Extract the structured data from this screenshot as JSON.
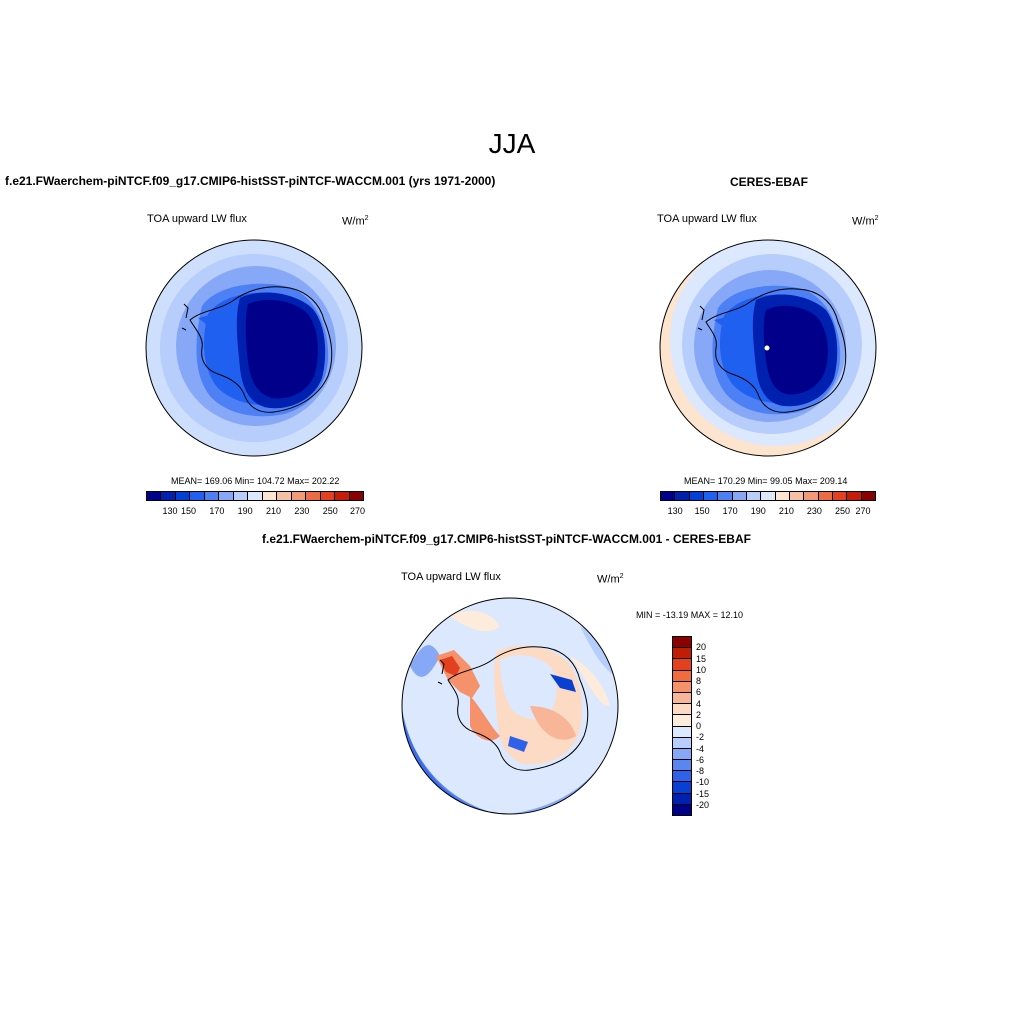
{
  "season_title": "JJA",
  "colors": {
    "abs_palette": [
      "#00008b",
      "#0020b0",
      "#0040d8",
      "#2060f0",
      "#4d7ff5",
      "#87a8f7",
      "#b7cdfb",
      "#dce8fd",
      "#fde4cf",
      "#f8c0a2",
      "#f29a77",
      "#ec6c45",
      "#e2401e",
      "#c41e0a",
      "#8b0000"
    ],
    "diff_palette": [
      "#8b0000",
      "#bf1e05",
      "#e2401e",
      "#f26b3e",
      "#f5916b",
      "#f8b597",
      "#fddac4",
      "#fdebdb",
      "#dce8fd",
      "#b7cdfb",
      "#87a8f7",
      "#5b86f0",
      "#2f62ea",
      "#0a3fd3",
      "#0020b0",
      "#00008b"
    ],
    "coastline": "#000000"
  },
  "model_panel": {
    "title": "f.e21.FWaerchem-piNTCF.f09_g17.CMIP6-histSST-piNTCF-WACCM.001 (yrs 1971-2000)",
    "variable": "TOA upward LW flux",
    "units": "W/m",
    "units_exp": "2",
    "stats": "MEAN= 169.06  Min= 104.72  Max= 202.22",
    "colorbar_labels": [
      "130",
      "150",
      "170",
      "190",
      "210",
      "230",
      "250",
      "270"
    ]
  },
  "obs_panel": {
    "title": "CERES-EBAF",
    "variable": "TOA upward LW flux",
    "units": "W/m",
    "units_exp": "2",
    "stats": "MEAN= 170.29  Min=  99.05  Max= 209.14",
    "colorbar_labels": [
      "130",
      "150",
      "170",
      "190",
      "210",
      "230",
      "250",
      "270"
    ]
  },
  "diff_panel": {
    "title": "f.e21.FWaerchem-piNTCF.f09_g17.CMIP6-histSST-piNTCF-WACCM.001 - CERES-EBAF",
    "variable": "TOA upward LW flux",
    "units": "W/m",
    "units_exp": "2",
    "stats": "MIN = -13.19 MAX =  12.10",
    "colorbar_labels": [
      "20",
      "15",
      "10",
      "8",
      "6",
      "4",
      "2",
      "0",
      "-2",
      "-4",
      "-6",
      "-8",
      "-10",
      "-15",
      "-20"
    ]
  }
}
